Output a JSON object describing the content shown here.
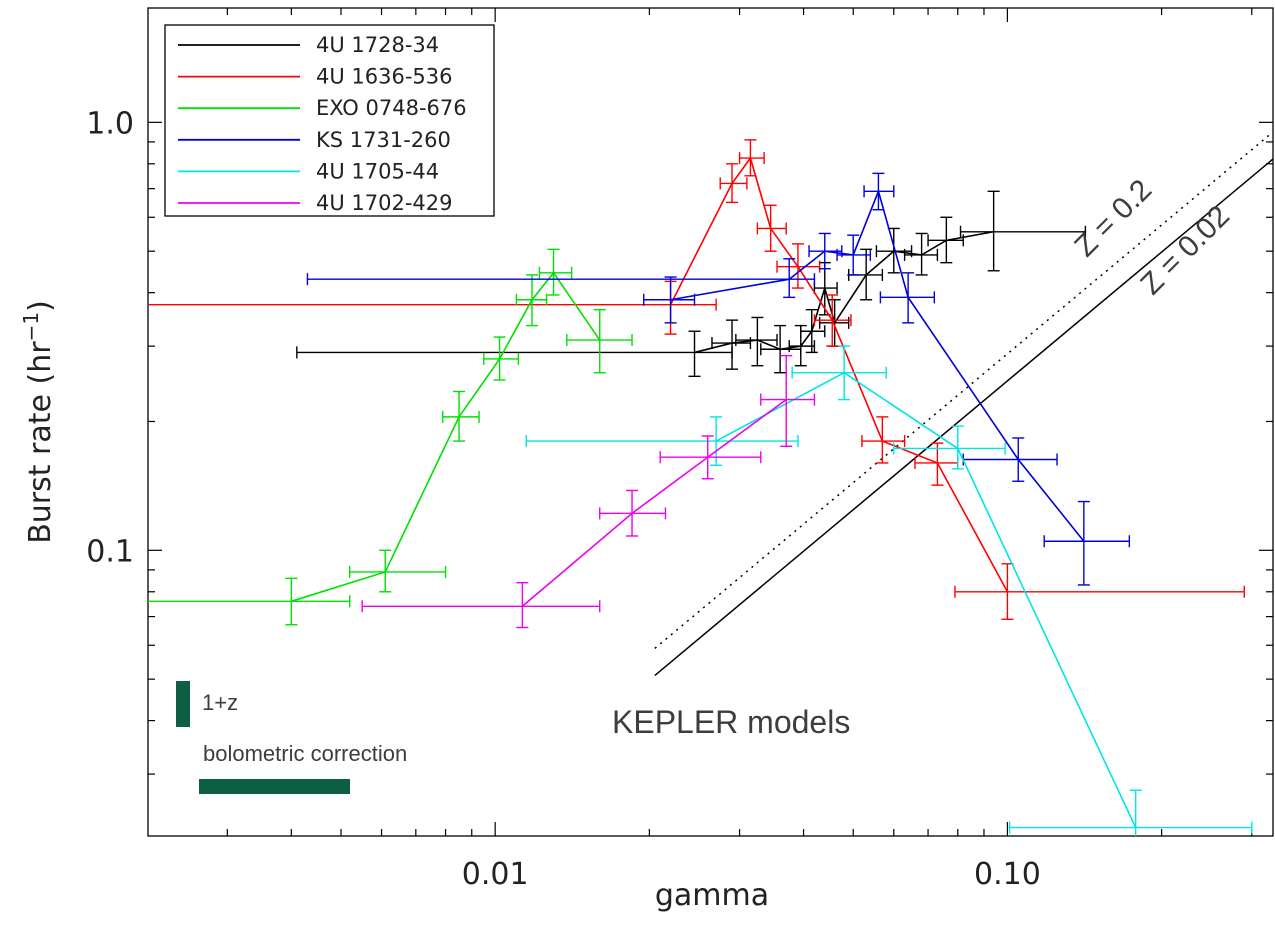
{
  "chart_data": {
    "type": "line",
    "xlabel": "gamma",
    "ylabel": "Burst rate (hr",
    "ylabel_sup": "−1",
    "ylabel_close": ")",
    "x_scale": "log",
    "y_scale": "log",
    "xlim": [
      0.0021,
      0.33
    ],
    "ylim": [
      0.0215,
      1.85
    ],
    "x_ticks": [
      {
        "value": 0.01,
        "label": "0.01"
      },
      {
        "value": 0.1,
        "label": "0.10"
      }
    ],
    "y_ticks": [
      {
        "value": 0.1,
        "label": "0.1"
      },
      {
        "value": 1.0,
        "label": "1.0"
      }
    ],
    "legend_position": "top-left",
    "series": [
      {
        "name": "4U 1728-34",
        "color": "#000000",
        "points": [
          {
            "x": 0.0245,
            "y": 0.29,
            "xlo": 0.0041,
            "xhi": 0.029,
            "ylo": 0.255,
            "yhi": 0.325
          },
          {
            "x": 0.029,
            "y": 0.305,
            "xlo": 0.0265,
            "xhi": 0.0315,
            "ylo": 0.265,
            "yhi": 0.345
          },
          {
            "x": 0.0325,
            "y": 0.31,
            "xlo": 0.0295,
            "xhi": 0.0355,
            "ylo": 0.27,
            "yhi": 0.35
          },
          {
            "x": 0.036,
            "y": 0.295,
            "xlo": 0.033,
            "xhi": 0.0395,
            "ylo": 0.26,
            "yhi": 0.335
          },
          {
            "x": 0.0395,
            "y": 0.3,
            "xlo": 0.0375,
            "xhi": 0.042,
            "ylo": 0.27,
            "yhi": 0.335
          },
          {
            "x": 0.0415,
            "y": 0.325,
            "xlo": 0.0395,
            "xhi": 0.044,
            "ylo": 0.29,
            "yhi": 0.365
          },
          {
            "x": 0.044,
            "y": 0.41,
            "xlo": 0.042,
            "xhi": 0.0465,
            "ylo": 0.355,
            "yhi": 0.47
          },
          {
            "x": 0.046,
            "y": 0.34,
            "xlo": 0.043,
            "xhi": 0.049,
            "ylo": 0.3,
            "yhi": 0.385
          },
          {
            "x": 0.053,
            "y": 0.44,
            "xlo": 0.049,
            "xhi": 0.057,
            "ylo": 0.385,
            "yhi": 0.505
          },
          {
            "x": 0.06,
            "y": 0.5,
            "xlo": 0.0555,
            "xhi": 0.065,
            "ylo": 0.445,
            "yhi": 0.565
          },
          {
            "x": 0.068,
            "y": 0.49,
            "xlo": 0.063,
            "xhi": 0.073,
            "ylo": 0.44,
            "yhi": 0.55
          },
          {
            "x": 0.076,
            "y": 0.53,
            "xlo": 0.07,
            "xhi": 0.082,
            "ylo": 0.47,
            "yhi": 0.6
          },
          {
            "x": 0.094,
            "y": 0.555,
            "xlo": 0.081,
            "xhi": 0.142,
            "ylo": 0.45,
            "yhi": 0.69
          }
        ]
      },
      {
        "name": "4U 1636-536",
        "color": "#ff0000",
        "points": [
          {
            "x": 0.022,
            "y": 0.375,
            "xlo": 0.002,
            "xhi": 0.027,
            "ylo": 0.32,
            "yhi": 0.425
          },
          {
            "x": 0.029,
            "y": 0.72,
            "xlo": 0.0275,
            "xhi": 0.031,
            "ylo": 0.65,
            "yhi": 0.8
          },
          {
            "x": 0.0315,
            "y": 0.825,
            "xlo": 0.03,
            "xhi": 0.0335,
            "ylo": 0.75,
            "yhi": 0.91
          },
          {
            "x": 0.0345,
            "y": 0.565,
            "xlo": 0.0325,
            "xhi": 0.037,
            "ylo": 0.5,
            "yhi": 0.64
          },
          {
            "x": 0.039,
            "y": 0.46,
            "xlo": 0.0355,
            "xhi": 0.043,
            "ylo": 0.41,
            "yhi": 0.52
          },
          {
            "x": 0.0455,
            "y": 0.345,
            "xlo": 0.042,
            "xhi": 0.0495,
            "ylo": 0.3,
            "yhi": 0.395
          },
          {
            "x": 0.057,
            "y": 0.18,
            "xlo": 0.052,
            "xhi": 0.063,
            "ylo": 0.16,
            "yhi": 0.205
          },
          {
            "x": 0.073,
            "y": 0.16,
            "xlo": 0.066,
            "xhi": 0.08,
            "ylo": 0.142,
            "yhi": 0.178
          },
          {
            "x": 0.1,
            "y": 0.08,
            "xlo": 0.079,
            "xhi": 0.29,
            "ylo": 0.069,
            "yhi": 0.093
          }
        ]
      },
      {
        "name": "EXO 0748-676",
        "color": "#00e000",
        "points": [
          {
            "x": 0.004,
            "y": 0.076,
            "xlo": 0.0021,
            "xhi": 0.0052,
            "ylo": 0.067,
            "yhi": 0.086
          },
          {
            "x": 0.0061,
            "y": 0.089,
            "xlo": 0.0052,
            "xhi": 0.008,
            "ylo": 0.08,
            "yhi": 0.1
          },
          {
            "x": 0.0085,
            "y": 0.205,
            "xlo": 0.0079,
            "xhi": 0.0093,
            "ylo": 0.18,
            "yhi": 0.235
          },
          {
            "x": 0.0102,
            "y": 0.28,
            "xlo": 0.0095,
            "xhi": 0.0111,
            "ylo": 0.25,
            "yhi": 0.315
          },
          {
            "x": 0.0118,
            "y": 0.385,
            "xlo": 0.011,
            "xhi": 0.0126,
            "ylo": 0.335,
            "yhi": 0.44
          },
          {
            "x": 0.013,
            "y": 0.445,
            "xlo": 0.0122,
            "xhi": 0.0141,
            "ylo": 0.395,
            "yhi": 0.505
          },
          {
            "x": 0.016,
            "y": 0.31,
            "xlo": 0.0138,
            "xhi": 0.0185,
            "ylo": 0.26,
            "yhi": 0.365
          }
        ]
      },
      {
        "name": "KS 1731-260",
        "color": "#0000dd",
        "points": [
          {
            "x": 0.022,
            "y": 0.385,
            "xlo": 0.0195,
            "xhi": 0.0245,
            "ylo": 0.34,
            "yhi": 0.435
          },
          {
            "x": 0.0375,
            "y": 0.43,
            "xlo": 0.0043,
            "xhi": 0.042,
            "ylo": 0.39,
            "yhi": 0.48
          },
          {
            "x": 0.044,
            "y": 0.5,
            "xlo": 0.041,
            "xhi": 0.0475,
            "ylo": 0.455,
            "yhi": 0.55
          },
          {
            "x": 0.05,
            "y": 0.49,
            "xlo": 0.0465,
            "xhi": 0.054,
            "ylo": 0.44,
            "yhi": 0.545
          },
          {
            "x": 0.056,
            "y": 0.69,
            "xlo": 0.0525,
            "xhi": 0.06,
            "ylo": 0.625,
            "yhi": 0.76
          },
          {
            "x": 0.064,
            "y": 0.39,
            "xlo": 0.0565,
            "xhi": 0.072,
            "ylo": 0.34,
            "yhi": 0.445
          },
          {
            "x": 0.105,
            "y": 0.163,
            "xlo": 0.082,
            "xhi": 0.125,
            "ylo": 0.145,
            "yhi": 0.183
          },
          {
            "x": 0.141,
            "y": 0.105,
            "xlo": 0.118,
            "xhi": 0.173,
            "ylo": 0.083,
            "yhi": 0.13
          }
        ]
      },
      {
        "name": "4U 1705-44",
        "color": "#00e5e5",
        "points": [
          {
            "x": 0.027,
            "y": 0.18,
            "xlo": 0.0115,
            "xhi": 0.039,
            "ylo": 0.158,
            "yhi": 0.205
          },
          {
            "x": 0.048,
            "y": 0.26,
            "xlo": 0.038,
            "xhi": 0.058,
            "ylo": 0.225,
            "yhi": 0.3
          },
          {
            "x": 0.08,
            "y": 0.173,
            "xlo": 0.06,
            "xhi": 0.099,
            "ylo": 0.155,
            "yhi": 0.195
          },
          {
            "x": 0.178,
            "y": 0.0225,
            "xlo": 0.101,
            "xhi": 0.3,
            "ylo": 0.0215,
            "yhi": 0.0275
          }
        ]
      },
      {
        "name": "4U 1702-429",
        "color": "#ee00ee",
        "points": [
          {
            "x": 0.0113,
            "y": 0.074,
            "xlo": 0.0055,
            "xhi": 0.016,
            "ylo": 0.066,
            "yhi": 0.084
          },
          {
            "x": 0.0185,
            "y": 0.122,
            "xlo": 0.016,
            "xhi": 0.0215,
            "ylo": 0.108,
            "yhi": 0.138
          },
          {
            "x": 0.026,
            "y": 0.165,
            "xlo": 0.021,
            "xhi": 0.033,
            "ylo": 0.147,
            "yhi": 0.185
          },
          {
            "x": 0.037,
            "y": 0.225,
            "xlo": 0.033,
            "xhi": 0.042,
            "ylo": 0.175,
            "yhi": 0.285
          }
        ]
      }
    ],
    "model_lines": [
      {
        "label": "Z = 0.2",
        "style": "dotted",
        "x0": 0.0205,
        "x1": 0.33
      },
      {
        "label": "Z = 0.02",
        "style": "solid",
        "x0": 0.0205,
        "x1": 0.33
      }
    ],
    "annotations": {
      "models": "KEPLER models",
      "one_plus_z": "1+z",
      "bolometric": "bolometric correction"
    },
    "scale_bar_color": "#0c5e45"
  }
}
